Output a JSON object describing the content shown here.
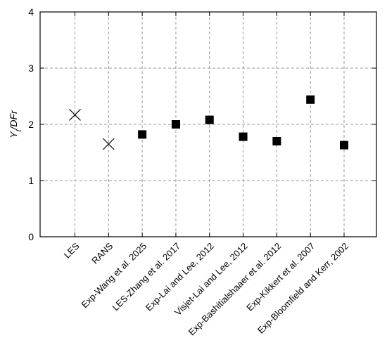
{
  "chart_data": {
    "type": "scatter",
    "categories": [
      "LES",
      "RANS",
      "Exp-Wang  et al. 2025",
      "LES-Zhang et al. 2017",
      "Exp-Lai and Lee, 2012",
      "Visjet-Lai and Lee, 2012",
      "Exp-Bashitialshaaer et al. 2012",
      "Exp-Kikkert et al. 2007",
      "Exp-Bloomfield and Kerr, 2002"
    ],
    "series": [
      {
        "marker": "x",
        "values": [
          2.17,
          1.65,
          null,
          null,
          null,
          null,
          null,
          null,
          null
        ]
      },
      {
        "marker": "square",
        "values": [
          null,
          null,
          1.82,
          2.0,
          2.08,
          1.78,
          1.7,
          2.44,
          1.63
        ]
      }
    ],
    "ylabel_main": "Y",
    "ylabel_sub": "t",
    "ylabel_rest": "/DFr",
    "ylim": [
      0,
      4
    ],
    "yticks": [
      0,
      1,
      2,
      3,
      4
    ],
    "grid": true,
    "legend": "none"
  }
}
